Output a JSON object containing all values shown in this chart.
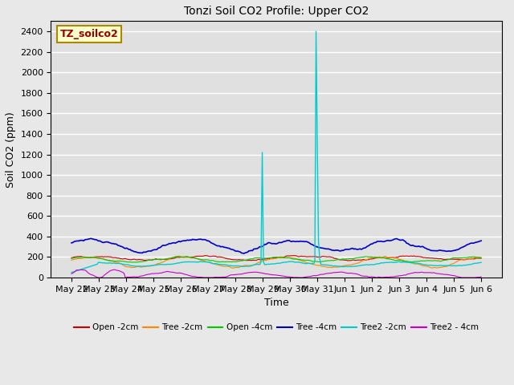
{
  "title": "Tonzi Soil CO2 Profile: Upper CO2",
  "xlabel": "Time",
  "ylabel": "Soil CO2 (ppm)",
  "ylim": [
    0,
    2500
  ],
  "yticks": [
    0,
    200,
    400,
    600,
    800,
    1000,
    1200,
    1400,
    1600,
    1800,
    2000,
    2200,
    2400
  ],
  "watermark_text": "TZ_soilco2",
  "fig_facecolor": "#e8e8e8",
  "plot_facecolor": "#e0e0e0",
  "n_points": 336,
  "series": {
    "Open_2cm": {
      "color": "#cc0000",
      "lw": 0.8
    },
    "Tree_2cm": {
      "color": "#ff8800",
      "lw": 0.8
    },
    "Open_4cm": {
      "color": "#00cc00",
      "lw": 0.8
    },
    "Tree_4cm": {
      "color": "#0000cc",
      "lw": 1.2
    },
    "Tree2_2cm": {
      "color": "#00cccc",
      "lw": 1.0
    },
    "Tree2_4cm": {
      "color": "#cc00cc",
      "lw": 0.8
    }
  },
  "legend_labels": [
    "Open -2cm",
    "Tree -2cm",
    "Open -4cm",
    "Tree -4cm",
    "Tree2 -2cm",
    "Tree2 - 4cm"
  ],
  "legend_colors": [
    "#cc0000",
    "#ff8800",
    "#00cc00",
    "#0000cc",
    "#00cccc",
    "#cc00cc"
  ],
  "xtick_labels": [
    "May 22",
    "May 23",
    "May 24",
    "May 25",
    "May 26",
    "May 27",
    "May 28",
    "May 29",
    "May 30",
    "May 31",
    "Jun 1",
    "Jun 2",
    "Jun 3",
    "Jun 4",
    "Jun 5",
    "Jun 6"
  ],
  "spike1_day": 7,
  "spike1_val": 1220,
  "spike2_day": 9,
  "spike2_val": 2400,
  "spike2b_val": 1280,
  "total_days": 15
}
